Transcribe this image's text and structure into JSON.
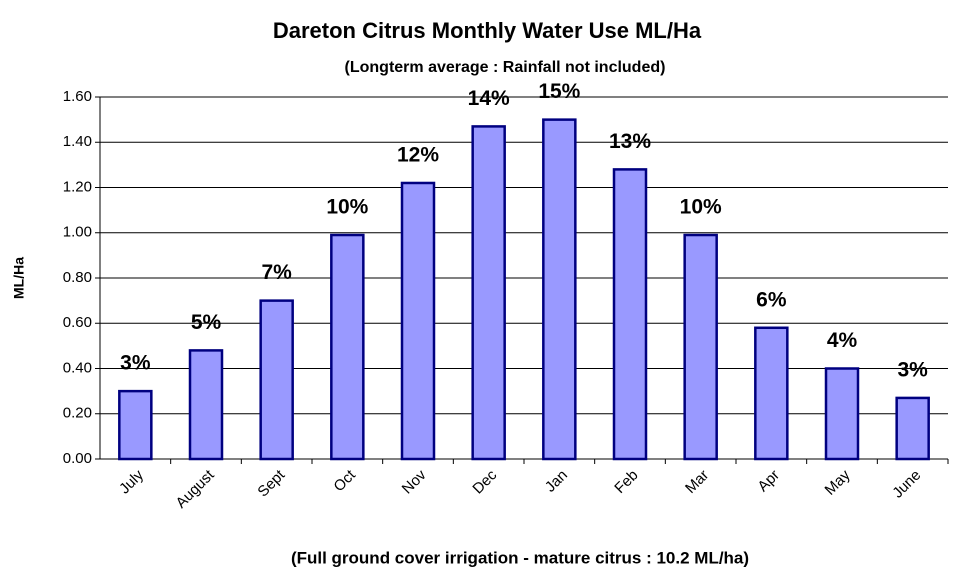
{
  "chart_data": {
    "type": "bar",
    "title": "Dareton Citrus Monthly Water Use ML/Ha",
    "subtitle": "(Longterm average : Rainfall not included)",
    "y_label": "ML/Ha",
    "x_label": "(Full ground cover irrigation - mature citrus : 10.2 ML/ha)",
    "categories": [
      "July",
      "August",
      "Sept",
      "Oct",
      "Nov",
      "Dec",
      "Jan",
      "Feb",
      "Mar",
      "Apr",
      "May",
      "June"
    ],
    "values": [
      0.3,
      0.48,
      0.7,
      0.99,
      1.22,
      1.47,
      1.5,
      1.28,
      0.99,
      0.58,
      0.4,
      0.27
    ],
    "data_labels": [
      "3%",
      "5%",
      "7%",
      "10%",
      "12%",
      "14%",
      "15%",
      "13%",
      "10%",
      "6%",
      "4%",
      "3%"
    ],
    "color": "#9999ff",
    "edge_color": "#000080",
    "ylim": [
      0,
      1.6
    ],
    "yticks": [
      {
        "value": 0,
        "label": "0.00"
      },
      {
        "value": 0.2,
        "label": "0.20"
      },
      {
        "value": 0.4,
        "label": "0.40"
      },
      {
        "value": 0.6,
        "label": "0.60"
      },
      {
        "value": 0.8,
        "label": "0.80"
      },
      {
        "value": 1.0,
        "label": "1.00"
      },
      {
        "value": 1.2,
        "label": "1.20"
      },
      {
        "value": 1.4,
        "label": "1.40"
      },
      {
        "value": 1.6,
        "label": "1.60"
      }
    ],
    "grid": true
  }
}
